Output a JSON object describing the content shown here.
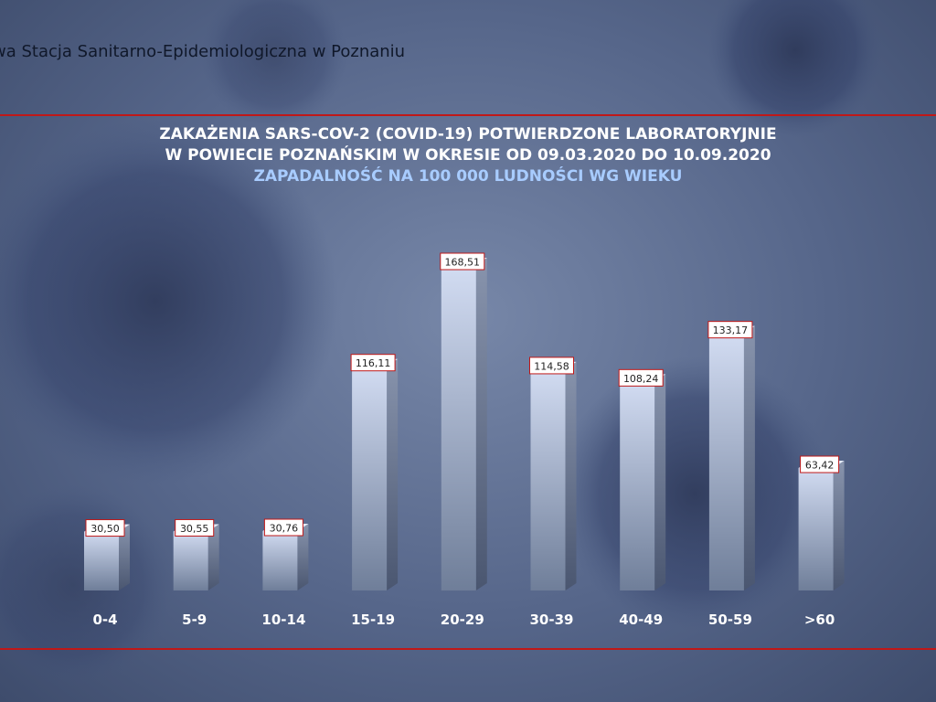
{
  "header": {
    "text": "wa Stacja Sanitarno-Epidemiologiczna w Poznaniu"
  },
  "colors": {
    "accent_red": "#c01818",
    "title_highlight": "#a8ccff"
  },
  "chart_data": {
    "type": "bar",
    "title": "ZAKAŻENIA SARS-COV-2 (COVID-19) POTWIERDZONE LABORATORYJNIE",
    "title_line2": "W POWIECIE POZNAŃSKIM W OKRESIE OD 09.03.2020 DO 10.09.2020",
    "subtitle": "ZAPADALNOŚĆ NA 100 000 LUDNOŚCI WG WIEKU",
    "categories": [
      "0-4",
      "5-9",
      "10-14",
      "15-19",
      "20-29",
      "30-39",
      "40-49",
      "50-59",
      ">60"
    ],
    "values": [
      30.5,
      30.55,
      30.76,
      116.11,
      168.51,
      114.58,
      108.24,
      133.17,
      63.42
    ],
    "value_labels": [
      "30,50",
      "30,55",
      "30,76",
      "116,11",
      "168,51",
      "114,58",
      "108,24",
      "133,17",
      "63,42"
    ],
    "ylim": [
      0,
      170
    ],
    "grid": false,
    "legend": "none"
  }
}
